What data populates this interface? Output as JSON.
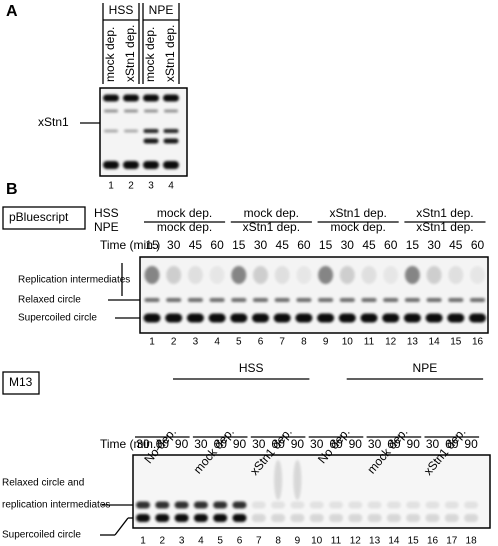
{
  "panel_a": {
    "label": "A",
    "groups": [
      {
        "name": "HSS",
        "lanes": [
          "mock dep.",
          "xStn1 dep."
        ]
      },
      {
        "name": "NPE",
        "lanes": [
          "mock dep.",
          "xStn1 dep."
        ]
      }
    ],
    "band_label": "xStn1",
    "lane_numbers": [
      1,
      2,
      3,
      4
    ]
  },
  "panel_b": {
    "label": "B",
    "top": {
      "template": "pBluescript",
      "row_labels": [
        "HSS",
        "NPE"
      ],
      "groups": [
        [
          "mock dep.",
          "mock dep."
        ],
        [
          "mock dep.",
          "xStn1 dep."
        ],
        [
          "xStn1 dep.",
          "mock dep."
        ],
        [
          "xStn1 dep.",
          "xStn1 dep."
        ]
      ],
      "time_label": "Time (min.)",
      "times": [
        15,
        30,
        45,
        60,
        15,
        30,
        45,
        60,
        15,
        30,
        45,
        60,
        15,
        30,
        45,
        60
      ],
      "band_labels": [
        "Replication intermediates",
        "Relaxed circle",
        "Supercoiled circle"
      ],
      "lane_numbers": [
        1,
        2,
        3,
        4,
        5,
        6,
        7,
        8,
        9,
        10,
        11,
        12,
        13,
        14,
        15,
        16
      ]
    },
    "bottom": {
      "template": "M13",
      "extracts": [
        "HSS",
        "NPE"
      ],
      "groups": [
        "No dep.",
        "mock dep.",
        "xStn1 dep.",
        "No dep.",
        "mock dep.",
        "xStn1 dep."
      ],
      "time_label": "Time (min.)",
      "times": [
        30,
        60,
        90,
        30,
        60,
        90,
        30,
        60,
        90,
        30,
        60,
        90,
        30,
        60,
        90,
        30,
        60,
        90
      ],
      "band_labels": [
        "Relaxed circle and",
        "replication intermediates",
        "Supercoiled circle"
      ],
      "lane_numbers": [
        1,
        2,
        3,
        4,
        5,
        6,
        7,
        8,
        9,
        10,
        11,
        12,
        13,
        14,
        15,
        16,
        17,
        18
      ]
    }
  }
}
